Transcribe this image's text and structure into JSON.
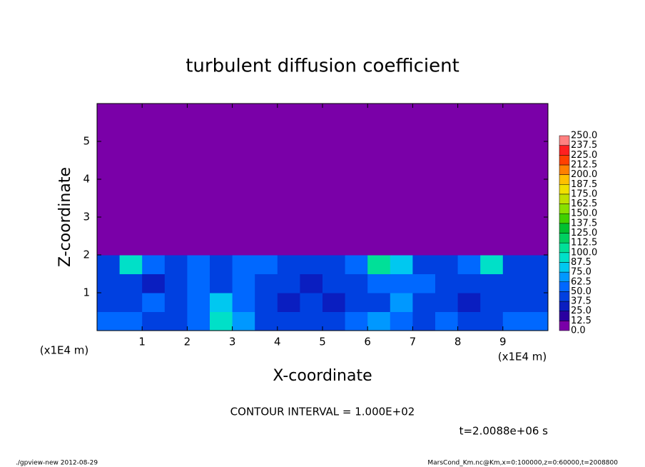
{
  "chart_data": {
    "type": "heatmap",
    "title": "turbulent diffusion coefficient",
    "x_label": "X-coordinate",
    "y_label": "Z-coordinate",
    "x_unit": "(x1E4 m)",
    "y_unit": "(x1E4 m)",
    "annotation": "CONTOUR INTERVAL = 1.000E+02",
    "time_label": "t=2.0088e+06 s",
    "footer_left": "./gpview-new  2012-08-29",
    "footer_right": "MarsCond_Km.nc@Km,x=0:100000,z=0:60000,t=2008800",
    "xlim": [
      0,
      10
    ],
    "ylim": [
      0,
      6
    ],
    "xticks": [
      1,
      2,
      3,
      4,
      5,
      6,
      7,
      8,
      9
    ],
    "yticks": [
      1,
      2,
      3,
      4,
      5
    ],
    "x": [
      0.25,
      0.75,
      1.25,
      1.75,
      2.25,
      2.75,
      3.25,
      3.75,
      4.25,
      4.75,
      5.25,
      5.75,
      6.25,
      6.75,
      7.25,
      7.75,
      8.25,
      8.75,
      9.25,
      9.75
    ],
    "y": [
      0.25,
      0.75,
      1.25,
      1.75,
      2.25,
      2.75,
      3.25,
      3.75,
      4.25,
      4.75,
      5.25,
      5.75
    ],
    "values": [
      [
        55,
        60,
        45,
        40,
        50,
        90,
        70,
        45,
        40,
        45,
        40,
        55,
        70,
        60,
        45,
        50,
        40,
        45,
        55,
        50
      ],
      [
        45,
        40,
        50,
        45,
        55,
        80,
        60,
        40,
        35,
        40,
        35,
        40,
        45,
        65,
        45,
        40,
        35,
        40,
        45,
        40
      ],
      [
        40,
        45,
        35,
        40,
        50,
        45,
        55,
        45,
        40,
        35,
        40,
        45,
        50,
        55,
        60,
        45,
        40,
        45,
        40,
        40
      ],
      [
        40,
        90,
        60,
        40,
        50,
        45,
        55,
        50,
        40,
        45,
        45,
        50,
        100,
        80,
        40,
        45,
        55,
        90,
        45,
        40
      ],
      [
        0,
        0,
        0,
        0,
        0,
        0,
        0,
        0,
        0,
        0,
        0,
        0,
        0,
        0,
        0,
        0,
        0,
        0,
        0,
        0
      ],
      [
        0,
        0,
        0,
        0,
        0,
        0,
        0,
        0,
        0,
        0,
        0,
        0,
        0,
        0,
        0,
        0,
        0,
        0,
        0,
        0
      ],
      [
        0,
        0,
        0,
        0,
        0,
        0,
        0,
        0,
        0,
        0,
        0,
        0,
        0,
        0,
        0,
        0,
        0,
        0,
        0,
        0
      ],
      [
        0,
        0,
        0,
        0,
        0,
        0,
        0,
        0,
        0,
        0,
        0,
        0,
        0,
        0,
        0,
        0,
        0,
        0,
        0,
        0
      ],
      [
        0,
        0,
        0,
        0,
        0,
        0,
        0,
        0,
        0,
        0,
        0,
        0,
        0,
        0,
        0,
        0,
        0,
        0,
        0,
        0
      ],
      [
        0,
        0,
        0,
        0,
        0,
        0,
        0,
        0,
        0,
        0,
        0,
        0,
        0,
        0,
        0,
        0,
        0,
        0,
        0,
        0
      ],
      [
        0,
        0,
        0,
        0,
        0,
        0,
        0,
        0,
        0,
        0,
        0,
        0,
        0,
        0,
        0,
        0,
        0,
        0,
        0,
        0
      ],
      [
        0,
        0,
        0,
        0,
        0,
        0,
        0,
        0,
        0,
        0,
        0,
        0,
        0,
        0,
        0,
        0,
        0,
        0,
        0,
        0
      ]
    ],
    "levels": [
      {
        "value": 0,
        "label": "0.0"
      },
      {
        "value": 12.5,
        "label": "12.5"
      },
      {
        "value": 25,
        "label": "25.0"
      },
      {
        "value": 37.5,
        "label": "37.5"
      },
      {
        "value": 50,
        "label": "50.0"
      },
      {
        "value": 62.5,
        "label": "62.5"
      },
      {
        "value": 75,
        "label": "75.0"
      },
      {
        "value": 87.5,
        "label": "87.5"
      },
      {
        "value": 100,
        "label": "100.0"
      },
      {
        "value": 112.5,
        "label": "112.5"
      },
      {
        "value": 125,
        "label": "125.0"
      },
      {
        "value": 137.5,
        "label": "137.5"
      },
      {
        "value": 150,
        "label": "150.0"
      },
      {
        "value": 162.5,
        "label": "162.5"
      },
      {
        "value": 175,
        "label": "175.0"
      },
      {
        "value": 187.5,
        "label": "187.5"
      },
      {
        "value": 200,
        "label": "200.0"
      },
      {
        "value": 212.5,
        "label": "212.5"
      },
      {
        "value": 225,
        "label": "225.0"
      },
      {
        "value": 237.5,
        "label": "237.5"
      },
      {
        "value": 250,
        "label": "250.0"
      }
    ],
    "colors": [
      "#7a00a8",
      "#2a00a0",
      "#0a1ec0",
      "#0040e0",
      "#0068ff",
      "#0098ff",
      "#00c8f0",
      "#00e0c8",
      "#00e098",
      "#00d060",
      "#00c030",
      "#40d000",
      "#88e000",
      "#c0e000",
      "#f0e000",
      "#ffc000",
      "#ff8000",
      "#ff4000",
      "#ff2020",
      "#ff8080"
    ]
  }
}
